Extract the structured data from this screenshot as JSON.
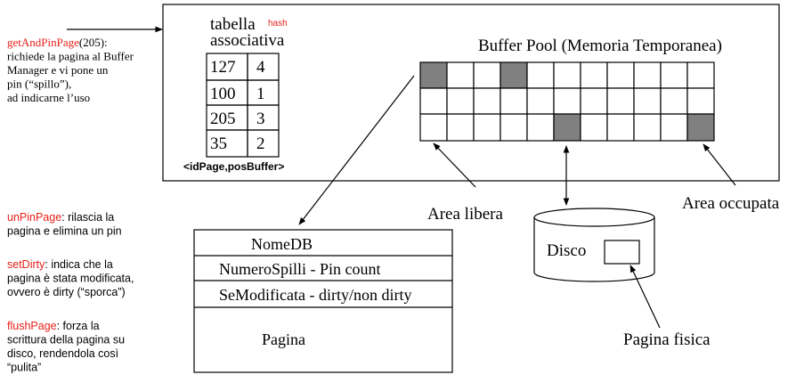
{
  "notes": {
    "get_and_pin": {
      "name": "getAndPinPage",
      "first": "(205):",
      "lines": [
        "richiede la pagina al Buffer",
        "Manager e  vi pone un",
        "pin (“spillo”),",
        "ad indicarne l’uso"
      ]
    },
    "un_pin": {
      "name": "unPinPage",
      "first": ": rilascia la",
      "lines": [
        "pagina e elimina un pin"
      ]
    },
    "set_dirty": {
      "name": "setDirty",
      "first": ": indica che la",
      "lines": [
        "pagina è stata modificata,",
        "ovvero è dirty (“sporca”)"
      ]
    },
    "flush": {
      "name": "flushPage",
      "first": ": forza la",
      "lines": [
        "scrittura della pagina su",
        "disco, rendendola così",
        "“pulita”"
      ]
    }
  },
  "hash_table": {
    "title": "tabella",
    "tag": "hash",
    "subtitle": "associativa",
    "rows": [
      [
        127,
        4
      ],
      [
        100,
        1
      ],
      [
        205,
        3
      ],
      [
        35,
        2
      ]
    ],
    "caption": "<idPage,posBuffer>"
  },
  "buffer_pool": {
    "title": "Buffer Pool   (Memoria Temporanea)"
  },
  "labels": {
    "free": "Area libera",
    "used": "Area occupata",
    "disk": "Disco",
    "physical_page": "Pagina fisica"
  },
  "page_struct": {
    "fields": [
      "NomeDB",
      "NumeroSpilli - Pin count",
      "SeModificata - dirty/non dirty",
      "Pagina"
    ]
  }
}
